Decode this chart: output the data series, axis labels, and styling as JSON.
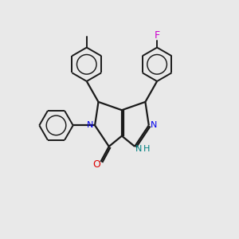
{
  "bg_color": "#e9e9e9",
  "bond_color": "#1a1a1a",
  "N_color": "#0000ee",
  "O_color": "#dd0000",
  "F_color": "#cc00cc",
  "NH_color": "#008080",
  "figsize": [
    3.0,
    3.0
  ],
  "dpi": 100,
  "xlim": [
    0,
    10
  ],
  "ylim": [
    0,
    10
  ]
}
